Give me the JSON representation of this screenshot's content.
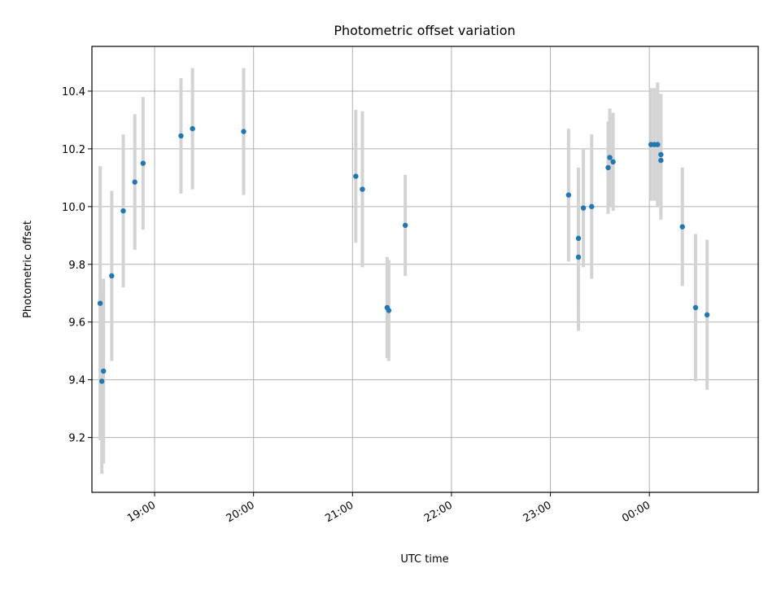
{
  "chart_data": {
    "type": "scatter",
    "title": "Photometric offset variation",
    "xlabel": "UTC time",
    "ylabel": "Photometric offset",
    "x_ticks": [
      "19:00",
      "20:00",
      "21:00",
      "22:00",
      "23:00",
      "00:00"
    ],
    "y_ticks": [
      "9.2",
      "9.4",
      "9.6",
      "9.8",
      "10.0",
      "10.2",
      "10.4"
    ],
    "xlim": [
      "18:22",
      "01:06"
    ],
    "ylim": [
      9.01,
      10.555
    ],
    "grid": true,
    "point_color": "#1f77b4",
    "errorbar_color": "#d3d3d3",
    "points": [
      {
        "t": "18:27",
        "y": 9.665,
        "err": 0.475
      },
      {
        "t": "18:28",
        "y": 9.395,
        "err": 0.32
      },
      {
        "t": "18:29",
        "y": 9.43,
        "err": 0.32
      },
      {
        "t": "18:34",
        "y": 9.76,
        "err": 0.295
      },
      {
        "t": "18:41",
        "y": 9.985,
        "err": 0.265
      },
      {
        "t": "18:48",
        "y": 10.085,
        "err": 0.235
      },
      {
        "t": "18:53",
        "y": 10.15,
        "err": 0.23
      },
      {
        "t": "19:16",
        "y": 10.245,
        "err": 0.2
      },
      {
        "t": "19:23",
        "y": 10.27,
        "err": 0.21
      },
      {
        "t": "19:54",
        "y": 10.26,
        "err": 0.22
      },
      {
        "t": "21:02",
        "y": 10.105,
        "err": 0.23
      },
      {
        "t": "21:06",
        "y": 10.06,
        "err": 0.27
      },
      {
        "t": "21:21",
        "y": 9.65,
        "err": 0.175
      },
      {
        "t": "21:22",
        "y": 9.64,
        "err": 0.175
      },
      {
        "t": "21:32",
        "y": 9.935,
        "err": 0.175
      },
      {
        "t": "23:11",
        "y": 10.04,
        "err": 0.23
      },
      {
        "t": "23:17",
        "y": 9.89,
        "err": 0.245
      },
      {
        "t": "23:17",
        "y": 9.825,
        "err": 0.255
      },
      {
        "t": "23:20",
        "y": 9.995,
        "err": 0.205
      },
      {
        "t": "23:25",
        "y": 10.0,
        "err": 0.25
      },
      {
        "t": "23:35",
        "y": 10.135,
        "err": 0.16
      },
      {
        "t": "23:36",
        "y": 10.17,
        "err": 0.17
      },
      {
        "t": "23:38",
        "y": 10.155,
        "err": 0.17
      },
      {
        "t": "00:01",
        "y": 10.215,
        "err": 0.195
      },
      {
        "t": "00:03",
        "y": 10.215,
        "err": 0.195
      },
      {
        "t": "00:05",
        "y": 10.215,
        "err": 0.215
      },
      {
        "t": "00:07",
        "y": 10.18,
        "err": 0.21
      },
      {
        "t": "00:07",
        "y": 10.16,
        "err": 0.205
      },
      {
        "t": "00:20",
        "y": 9.93,
        "err": 0.205
      },
      {
        "t": "00:28",
        "y": 9.65,
        "err": 0.255
      },
      {
        "t": "00:35",
        "y": 9.625,
        "err": 0.26
      }
    ]
  }
}
